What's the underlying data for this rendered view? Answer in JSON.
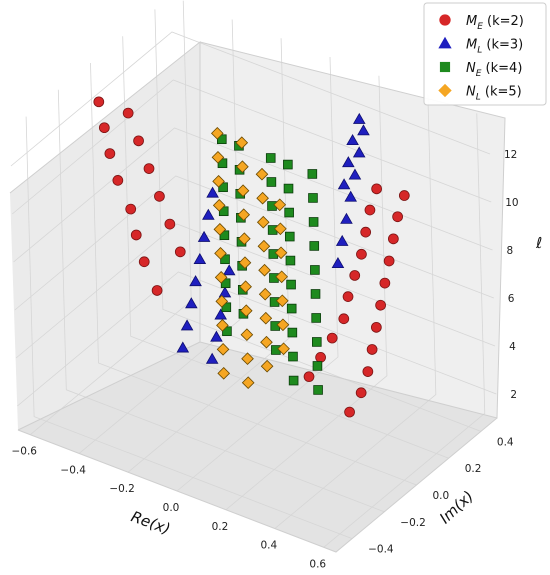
{
  "chart_data": {
    "type": "scatter",
    "projection": "3d",
    "axes": {
      "x": {
        "label": "Re(x)",
        "ticks": [
          "−0.6",
          "−0.4",
          "−0.2",
          "0.0",
          "0.2",
          "0.4",
          "0.6"
        ],
        "range": [
          -0.65,
          0.65
        ]
      },
      "y": {
        "label": "Im(x)",
        "ticks": [
          "−0.4",
          "−0.2",
          "0.0",
          "0.2",
          "0.4"
        ],
        "range": [
          -0.5,
          0.5
        ]
      },
      "z": {
        "label": "ℓ",
        "ticks": [
          "2",
          "4",
          "6",
          "8",
          "10",
          "12"
        ],
        "range": [
          1,
          13.5
        ]
      }
    },
    "grid": true,
    "legend_position": "top-right",
    "series": [
      {
        "label_main": "M",
        "label_sub": "E",
        "label_rest": " (k=2)",
        "color": "#d62728",
        "edge": "#7a1414",
        "marker": "circle",
        "points": [
          [
            -0.62,
            0,
            12
          ],
          [
            -0.6,
            0,
            11
          ],
          [
            -0.58,
            0,
            10
          ],
          [
            -0.55,
            0,
            9
          ],
          [
            -0.5,
            0,
            8
          ],
          [
            -0.48,
            0,
            7
          ],
          [
            -0.45,
            0,
            6
          ],
          [
            -0.4,
            0,
            5
          ],
          [
            -0.5,
            0,
            12
          ],
          [
            -0.46,
            0,
            11
          ],
          [
            -0.42,
            0,
            10
          ],
          [
            -0.38,
            0,
            9
          ],
          [
            -0.34,
            0,
            8
          ],
          [
            -0.3,
            0,
            7
          ],
          [
            0.55,
            0.12,
            12
          ],
          [
            0.52,
            0.12,
            11
          ],
          [
            0.5,
            0.12,
            10
          ],
          [
            0.48,
            0.12,
            9
          ],
          [
            0.46,
            0.12,
            8
          ],
          [
            0.44,
            0.12,
            7
          ],
          [
            0.42,
            0.12,
            6
          ],
          [
            0.4,
            0.12,
            5
          ],
          [
            0.38,
            0.12,
            4
          ],
          [
            0.35,
            0.12,
            3
          ],
          [
            0.3,
            0.12,
            2
          ],
          [
            0.45,
            0.1,
            12
          ],
          [
            0.42,
            0.1,
            11
          ],
          [
            0.4,
            0.1,
            10
          ],
          [
            0.38,
            0.1,
            9
          ],
          [
            0.35,
            0.1,
            8
          ],
          [
            0.32,
            0.1,
            7
          ],
          [
            0.3,
            0.1,
            6
          ],
          [
            0.25,
            0.1,
            5
          ],
          [
            0.2,
            0.1,
            4
          ],
          [
            0.15,
            0.1,
            3
          ]
        ]
      },
      {
        "label_main": "M",
        "label_sub": "L",
        "label_rest": " (k=3)",
        "color": "#1f1fbf",
        "edge": "#0e0e70",
        "marker": "triangle",
        "points": [
          [
            -0.3,
            0,
            3
          ],
          [
            -0.28,
            0,
            4
          ],
          [
            -0.26,
            0,
            5
          ],
          [
            -0.24,
            0,
            6
          ],
          [
            -0.22,
            0,
            7
          ],
          [
            -0.2,
            0,
            8
          ],
          [
            -0.18,
            0,
            9
          ],
          [
            -0.16,
            0,
            10
          ],
          [
            -0.18,
            0,
            3
          ],
          [
            -0.16,
            0,
            4
          ],
          [
            -0.14,
            0,
            5
          ],
          [
            -0.12,
            0,
            6
          ],
          [
            -0.1,
            0,
            7
          ],
          [
            0.3,
            0.25,
            13
          ],
          [
            0.28,
            0.25,
            12
          ],
          [
            0.26,
            0.25,
            11
          ],
          [
            0.24,
            0.25,
            10
          ],
          [
            0.22,
            0.25,
            9
          ],
          [
            0.2,
            0.25,
            8
          ],
          [
            0.18,
            0.25,
            7
          ],
          [
            0.25,
            0.3,
            13
          ],
          [
            0.22,
            0.3,
            12
          ],
          [
            0.2,
            0.3,
            11
          ],
          [
            0.18,
            0.3,
            10
          ]
        ]
      },
      {
        "label_main": "N",
        "label_sub": "E",
        "label_rest": " (k=4)",
        "color": "#1e8a1e",
        "edge": "#0b3d0b",
        "marker": "square",
        "points": [
          [
            -0.15,
            0.05,
            12
          ],
          [
            -0.15,
            0.05,
            11
          ],
          [
            -0.15,
            0.05,
            10
          ],
          [
            -0.15,
            0.05,
            9
          ],
          [
            -0.15,
            0.05,
            8
          ],
          [
            -0.15,
            0.05,
            7
          ],
          [
            -0.15,
            0.05,
            6
          ],
          [
            -0.15,
            0.05,
            5
          ],
          [
            -0.15,
            0.05,
            4
          ],
          [
            -0.08,
            0.05,
            12
          ],
          [
            -0.08,
            0.05,
            11
          ],
          [
            -0.08,
            0.05,
            10
          ],
          [
            -0.08,
            0.05,
            9
          ],
          [
            -0.08,
            0.05,
            8
          ],
          [
            -0.08,
            0.05,
            7
          ],
          [
            -0.08,
            0.05,
            6
          ],
          [
            -0.08,
            0.05,
            5
          ],
          [
            0.05,
            0.05,
            12
          ],
          [
            0.05,
            0.05,
            11
          ],
          [
            0.05,
            0.05,
            10
          ],
          [
            0.05,
            0.05,
            9
          ],
          [
            0.05,
            0.05,
            8
          ],
          [
            0.05,
            0.05,
            7
          ],
          [
            0.05,
            0.05,
            6
          ],
          [
            0.05,
            0.05,
            5
          ],
          [
            0.05,
            0.05,
            4
          ],
          [
            0.12,
            0.05,
            12
          ],
          [
            0.12,
            0.05,
            11
          ],
          [
            0.12,
            0.05,
            10
          ],
          [
            0.12,
            0.05,
            9
          ],
          [
            0.12,
            0.05,
            8
          ],
          [
            0.12,
            0.05,
            7
          ],
          [
            0.12,
            0.05,
            6
          ],
          [
            0.12,
            0.05,
            5
          ],
          [
            0.12,
            0.05,
            4
          ],
          [
            0.12,
            0.05,
            3
          ],
          [
            0.22,
            0.05,
            12
          ],
          [
            0.22,
            0.05,
            11
          ],
          [
            0.22,
            0.05,
            10
          ],
          [
            0.22,
            0.05,
            9
          ],
          [
            0.22,
            0.05,
            8
          ],
          [
            0.22,
            0.05,
            7
          ],
          [
            0.22,
            0.05,
            6
          ],
          [
            0.22,
            0.05,
            5
          ],
          [
            0.22,
            0.05,
            4
          ],
          [
            0.22,
            0.05,
            3
          ]
        ]
      },
      {
        "label_main": "N",
        "label_sub": "L",
        "label_rest": " (k=5)",
        "color": "#f5a623",
        "edge": "#6a4a00",
        "marker": "diamond",
        "points": [
          [
            -0.1,
            -0.05,
            13
          ],
          [
            -0.1,
            -0.05,
            12
          ],
          [
            -0.1,
            -0.05,
            11
          ],
          [
            -0.1,
            -0.05,
            10
          ],
          [
            -0.1,
            -0.05,
            9
          ],
          [
            -0.1,
            -0.05,
            8
          ],
          [
            -0.1,
            -0.05,
            7
          ],
          [
            -0.1,
            -0.05,
            6
          ],
          [
            -0.1,
            -0.05,
            5
          ],
          [
            -0.1,
            -0.05,
            4
          ],
          [
            -0.1,
            -0.05,
            3
          ],
          [
            0.0,
            -0.05,
            13
          ],
          [
            0.0,
            -0.05,
            12
          ],
          [
            0.0,
            -0.05,
            11
          ],
          [
            0.0,
            -0.05,
            10
          ],
          [
            0.0,
            -0.05,
            9
          ],
          [
            0.0,
            -0.05,
            8
          ],
          [
            0.0,
            -0.05,
            7
          ],
          [
            0.0,
            -0.05,
            6
          ],
          [
            0.0,
            -0.05,
            5
          ],
          [
            0.0,
            -0.05,
            4
          ],
          [
            0.0,
            -0.05,
            3
          ],
          [
            0.08,
            -0.05,
            12
          ],
          [
            0.08,
            -0.05,
            11
          ],
          [
            0.08,
            -0.05,
            10
          ],
          [
            0.08,
            -0.05,
            9
          ],
          [
            0.08,
            -0.05,
            8
          ],
          [
            0.08,
            -0.05,
            7
          ],
          [
            0.08,
            -0.05,
            6
          ],
          [
            0.08,
            -0.05,
            5
          ],
          [
            0.08,
            -0.05,
            4
          ],
          [
            0.15,
            -0.05,
            11
          ],
          [
            0.15,
            -0.05,
            10
          ],
          [
            0.15,
            -0.05,
            9
          ],
          [
            0.15,
            -0.05,
            8
          ],
          [
            0.15,
            -0.05,
            7
          ],
          [
            0.15,
            -0.05,
            6
          ],
          [
            0.15,
            -0.05,
            5
          ]
        ]
      }
    ]
  }
}
